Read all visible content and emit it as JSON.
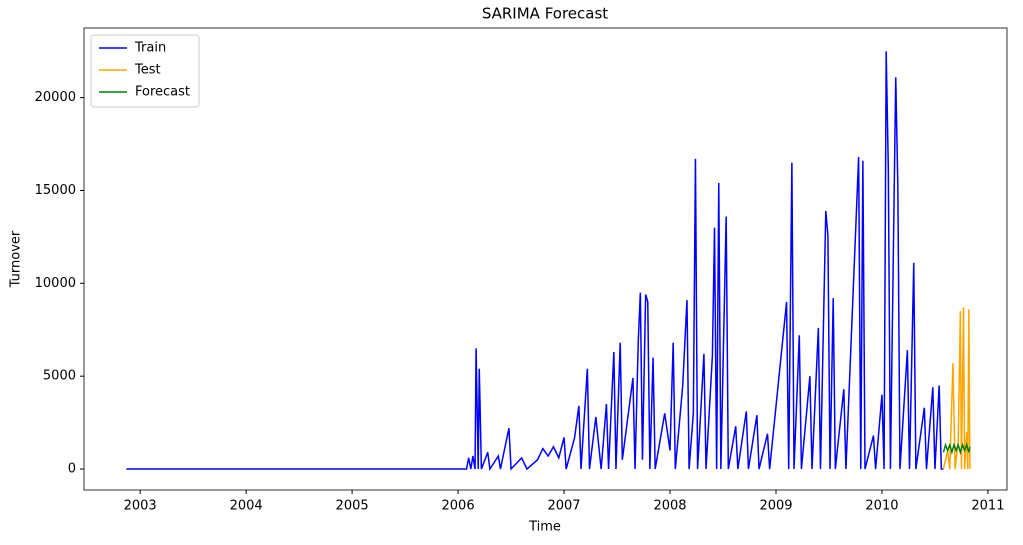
{
  "chart_data": {
    "type": "line",
    "title": "SARIMA Forecast",
    "x_label": "Time",
    "y_label": "Turnover",
    "xlim": [
      2002.47,
      2011.18
    ],
    "xticks": [
      2003,
      2004,
      2005,
      2006,
      2007,
      2008,
      2009,
      2010,
      2011
    ],
    "ylim": [
      -1130,
      23750
    ],
    "yticks": [
      0,
      5000,
      10000,
      15000,
      20000
    ],
    "grid": false,
    "legend": "upper left",
    "series": [
      {
        "name": "Train",
        "color": "#0000ff",
        "x": [
          2002.87,
          2006.08,
          2006.1,
          2006.12,
          2006.14,
          2006.16,
          2006.17,
          2006.19,
          2006.2,
          2006.22,
          2006.28,
          2006.3,
          2006.38,
          2006.4,
          2006.48,
          2006.5,
          2006.6,
          2006.65,
          2006.75,
          2006.8,
          2006.85,
          2006.9,
          2006.95,
          2007.0,
          2007.02,
          2007.1,
          2007.14,
          2007.16,
          2007.22,
          2007.24,
          2007.3,
          2007.35,
          2007.4,
          2007.42,
          2007.47,
          2007.49,
          2007.53,
          2007.55,
          2007.65,
          2007.67,
          2007.7,
          2007.72,
          2007.74,
          2007.77,
          2007.79,
          2007.81,
          2007.84,
          2007.86,
          2007.95,
          2008.0,
          2008.03,
          2008.05,
          2008.12,
          2008.16,
          2008.18,
          2008.22,
          2008.24,
          2008.26,
          2008.32,
          2008.34,
          2008.4,
          2008.42,
          2008.44,
          2008.46,
          2008.48,
          2008.53,
          2008.55,
          2008.62,
          2008.64,
          2008.72,
          2008.74,
          2008.82,
          2008.84,
          2008.92,
          2008.94,
          2009.1,
          2009.12,
          2009.15,
          2009.17,
          2009.22,
          2009.24,
          2009.32,
          2009.34,
          2009.4,
          2009.42,
          2009.47,
          2009.49,
          2009.51,
          2009.54,
          2009.56,
          2009.64,
          2009.66,
          2009.78,
          2009.8,
          2009.82,
          2009.84,
          2009.92,
          2009.94,
          2010.0,
          2010.02,
          2010.04,
          2010.06,
          2010.08,
          2010.13,
          2010.15,
          2010.17,
          2010.24,
          2010.26,
          2010.3,
          2010.32,
          2010.4,
          2010.42,
          2010.48,
          2010.5,
          2010.54,
          2010.56,
          2010.58
        ],
        "values": [
          0,
          0,
          600,
          0,
          700,
          0,
          6500,
          0,
          5400,
          0,
          900,
          0,
          700,
          0,
          2200,
          0,
          600,
          0,
          500,
          1100,
          700,
          1200,
          600,
          1700,
          0,
          1700,
          3400,
          0,
          5400,
          0,
          2800,
          0,
          3500,
          0,
          6300,
          0,
          6800,
          500,
          4900,
          0,
          6800,
          9500,
          500,
          9400,
          9000,
          0,
          6000,
          0,
          3000,
          1000,
          6800,
          0,
          4500,
          9100,
          0,
          3000,
          16700,
          0,
          6200,
          0,
          6100,
          13000,
          0,
          15400,
          0,
          13600,
          0,
          2300,
          0,
          3100,
          0,
          2900,
          0,
          1900,
          0,
          9000,
          0,
          16500,
          0,
          7200,
          0,
          5000,
          0,
          7600,
          0,
          13900,
          12600,
          0,
          9200,
          0,
          4300,
          0,
          16800,
          0,
          16600,
          0,
          1800,
          0,
          4000,
          0,
          22500,
          16200,
          0,
          21100,
          15200,
          0,
          6400,
          0,
          11100,
          0,
          3300,
          0,
          4400,
          0,
          4500,
          0,
          0
        ]
      },
      {
        "name": "Test",
        "color": "#ffa500",
        "x": [
          2010.58,
          2010.62,
          2010.64,
          2010.67,
          2010.69,
          2010.72,
          2010.74,
          2010.75,
          2010.77,
          2010.78,
          2010.8,
          2010.81,
          2010.82,
          2010.83
        ],
        "values": [
          0,
          1000,
          0,
          5700,
          0,
          1500,
          8500,
          0,
          8700,
          0,
          2000,
          0,
          8600,
          0
        ]
      },
      {
        "name": "Forecast",
        "color": "#008000",
        "x": [
          2010.58,
          2010.6,
          2010.62,
          2010.64,
          2010.66,
          2010.68,
          2010.7,
          2010.72,
          2010.74,
          2010.76,
          2010.78,
          2010.8,
          2010.82,
          2010.83
        ],
        "values": [
          900,
          1300,
          1000,
          1300,
          900,
          1300,
          1000,
          1300,
          900,
          1300,
          1000,
          1300,
          900,
          1200
        ]
      }
    ]
  }
}
